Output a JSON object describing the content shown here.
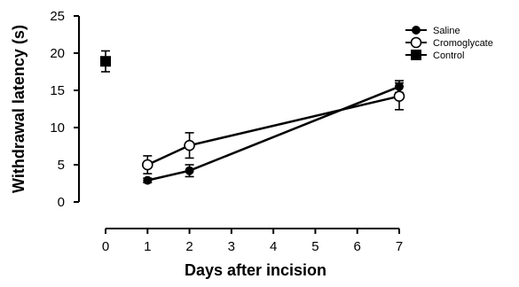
{
  "chart_data": {
    "type": "scatter",
    "title": "",
    "xlabel": "Days after incision",
    "ylabel": "Withdrawal latency (s)",
    "xlim": [
      0,
      7
    ],
    "ylim": [
      0,
      25
    ],
    "x_ticks": [
      0,
      1,
      2,
      3,
      4,
      5,
      6,
      7
    ],
    "y_ticks": [
      0,
      5,
      10,
      15,
      20,
      25
    ],
    "grid": false,
    "legend_position": "top-right",
    "series": [
      {
        "name": "Saline",
        "marker": "filled-circle",
        "connected": true,
        "color": "#000000",
        "points": [
          {
            "x": 1,
            "y": 2.9,
            "err": 0.3
          },
          {
            "x": 2,
            "y": 4.2,
            "err": 0.8
          },
          {
            "x": 7,
            "y": 15.5,
            "err": 0.8
          }
        ]
      },
      {
        "name": "Cromoglycate",
        "marker": "open-circle",
        "connected": true,
        "color": "#000000",
        "points": [
          {
            "x": 1,
            "y": 5.0,
            "err": 1.2
          },
          {
            "x": 2,
            "y": 7.6,
            "err": 1.7
          },
          {
            "x": 7,
            "y": 14.2,
            "err": 1.8
          }
        ]
      },
      {
        "name": "Control",
        "marker": "filled-square",
        "connected": false,
        "color": "#000000",
        "points": [
          {
            "x": 0,
            "y": 18.9,
            "err": 1.4
          }
        ]
      }
    ]
  }
}
